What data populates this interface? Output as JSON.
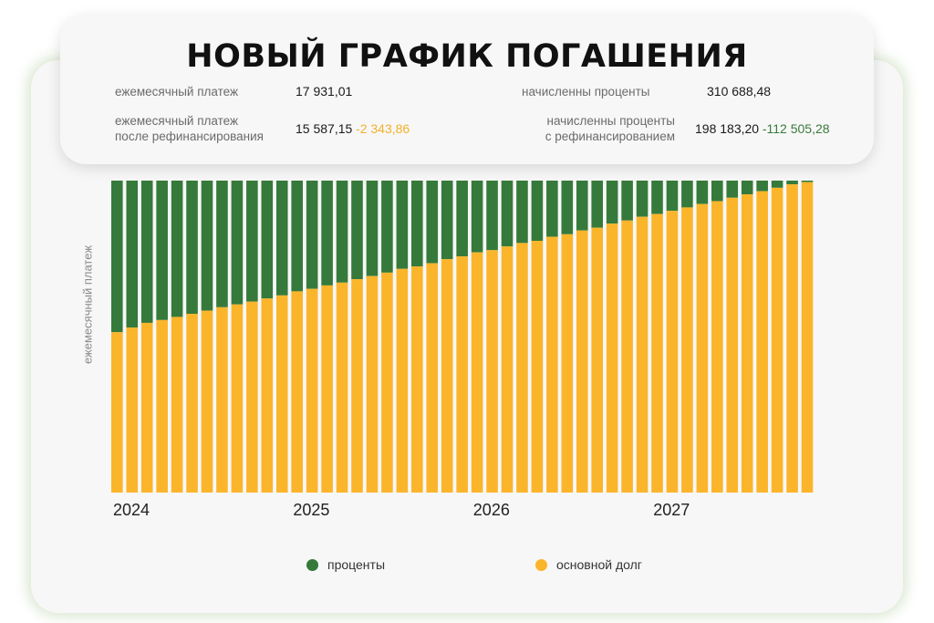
{
  "title": "НОВЫЙ ГРАФИК ПОГАШЕНИЯ",
  "stats": {
    "monthly_payment_label": "ежемесячный платеж",
    "monthly_payment_value": "17 931,01",
    "monthly_refi_label_1": "ежемесячный платеж",
    "monthly_refi_label_2": "после рефинансирования",
    "monthly_refi_value": "15 587,15",
    "monthly_refi_delta": "-2 343,86",
    "interest_label": "начисленны проценты",
    "interest_value": "310 688,48",
    "interest_refi_label_1": "начисленны проценты",
    "interest_refi_label_2": "с рефинансированием",
    "interest_refi_value": "198 183,20",
    "interest_refi_delta": "-112 505,28"
  },
  "colors": {
    "interest": "#357a3b",
    "principal": "#fbb52b",
    "delta_negative": "#f2b12a",
    "delta_positive": "#3b7a3c"
  },
  "chart_data": {
    "type": "bar",
    "stacked": true,
    "normalized": true,
    "ylabel": "ежемесячный платеж",
    "x_tick_labels": [
      "2024",
      "2025",
      "2026",
      "2027"
    ],
    "x_tick_bar_index": [
      0,
      12,
      24,
      36
    ],
    "series": [
      {
        "name": "основной долг",
        "color": "#fbb52b",
        "values": [
          0.514,
          0.529,
          0.544,
          0.553,
          0.563,
          0.573,
          0.583,
          0.594,
          0.603,
          0.612,
          0.622,
          0.632,
          0.645,
          0.653,
          0.664,
          0.673,
          0.684,
          0.694,
          0.705,
          0.717,
          0.725,
          0.735,
          0.748,
          0.757,
          0.77,
          0.777,
          0.789,
          0.8,
          0.807,
          0.82,
          0.828,
          0.84,
          0.849,
          0.862,
          0.872,
          0.884,
          0.893,
          0.903,
          0.914,
          0.925,
          0.934,
          0.945,
          0.956,
          0.966,
          0.977,
          0.988,
          0.995
        ]
      },
      {
        "name": "проценты",
        "color": "#357a3b",
        "values": [
          0.486,
          0.471,
          0.456,
          0.447,
          0.437,
          0.427,
          0.417,
          0.406,
          0.397,
          0.388,
          0.378,
          0.368,
          0.355,
          0.347,
          0.336,
          0.327,
          0.316,
          0.306,
          0.295,
          0.283,
          0.275,
          0.265,
          0.252,
          0.243,
          0.23,
          0.223,
          0.211,
          0.2,
          0.193,
          0.18,
          0.172,
          0.16,
          0.151,
          0.138,
          0.128,
          0.116,
          0.107,
          0.097,
          0.086,
          0.075,
          0.066,
          0.055,
          0.044,
          0.034,
          0.023,
          0.012,
          0.005
        ]
      }
    ],
    "legend": [
      {
        "label": "проценты",
        "color": "#357a3b"
      },
      {
        "label": "основной долг",
        "color": "#fbb52b"
      }
    ],
    "legend_position": "bottom"
  }
}
